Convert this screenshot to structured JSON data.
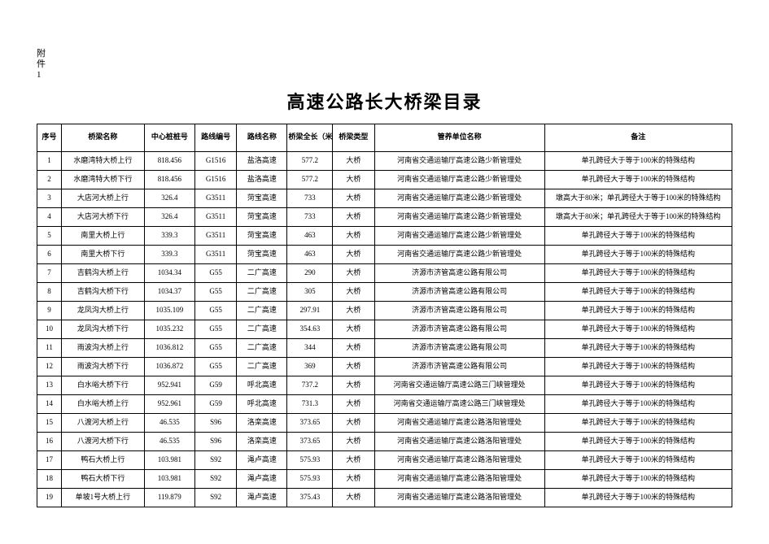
{
  "attachment_label": "附件1",
  "title": "高速公路长大桥梁目录",
  "table": {
    "columns": [
      {
        "key": "seq",
        "label": "序号",
        "class": "col-seq"
      },
      {
        "key": "name",
        "label": "桥梁名称",
        "class": "col-name"
      },
      {
        "key": "stake",
        "label": "中心桩桩号",
        "class": "col-stake"
      },
      {
        "key": "route_no",
        "label": "路线编号",
        "class": "col-route"
      },
      {
        "key": "route_name",
        "label": "路线名称",
        "class": "col-rname"
      },
      {
        "key": "length",
        "label": "桥梁全长（米）",
        "class": "col-len"
      },
      {
        "key": "type",
        "label": "桥梁类型",
        "class": "col-type"
      },
      {
        "key": "unit",
        "label": "管养单位名称",
        "class": "col-unit"
      },
      {
        "key": "note",
        "label": "备注",
        "class": "col-note"
      }
    ],
    "rows": [
      {
        "seq": "1",
        "name": "水磨湾特大桥上行",
        "stake": "818.456",
        "route_no": "G1516",
        "route_name": "盐洛高速",
        "length": "577.2",
        "type": "大桥",
        "unit": "河南省交通运输厅高速公路少新管理处",
        "note": "单孔跨径大于等于100米的特殊结构"
      },
      {
        "seq": "2",
        "name": "水磨湾特大桥下行",
        "stake": "818.456",
        "route_no": "G1516",
        "route_name": "盐洛高速",
        "length": "577.2",
        "type": "大桥",
        "unit": "河南省交通运输厅高速公路少新管理处",
        "note": "单孔跨径大于等于100米的特殊结构"
      },
      {
        "seq": "3",
        "name": "大店河大桥上行",
        "stake": "326.4",
        "route_no": "G3511",
        "route_name": "菏宝高速",
        "length": "733",
        "type": "大桥",
        "unit": "河南省交通运输厅高速公路少新管理处",
        "note": "墩高大于80米；单孔跨径大于等于100米的特殊结构"
      },
      {
        "seq": "4",
        "name": "大店河大桥下行",
        "stake": "326.4",
        "route_no": "G3511",
        "route_name": "菏宝高速",
        "length": "733",
        "type": "大桥",
        "unit": "河南省交通运输厅高速公路少新管理处",
        "note": "墩高大于80米；单孔跨径大于等于100米的特殊结构"
      },
      {
        "seq": "5",
        "name": "南里大桥上行",
        "stake": "339.3",
        "route_no": "G3511",
        "route_name": "菏宝高速",
        "length": "463",
        "type": "大桥",
        "unit": "河南省交通运输厅高速公路少新管理处",
        "note": "单孔跨径大于等于100米的特殊结构"
      },
      {
        "seq": "6",
        "name": "南里大桥下行",
        "stake": "339.3",
        "route_no": "G3511",
        "route_name": "菏宝高速",
        "length": "463",
        "type": "大桥",
        "unit": "河南省交通运输厅高速公路少新管理处",
        "note": "单孔跨径大于等于100米的特殊结构"
      },
      {
        "seq": "7",
        "name": "吉鹤沟大桥上行",
        "stake": "1034.34",
        "route_no": "G55",
        "route_name": "二广高速",
        "length": "290",
        "type": "大桥",
        "unit": "济源市济管高速公路有限公司",
        "note": "单孔跨径大于等于100米的特殊结构"
      },
      {
        "seq": "8",
        "name": "吉鹤沟大桥下行",
        "stake": "1034.37",
        "route_no": "G55",
        "route_name": "二广高速",
        "length": "305",
        "type": "大桥",
        "unit": "济源市济管高速公路有限公司",
        "note": "单孔跨径大于等于100米的特殊结构"
      },
      {
        "seq": "9",
        "name": "龙凤沟大桥上行",
        "stake": "1035.109",
        "route_no": "G55",
        "route_name": "二广高速",
        "length": "297.91",
        "type": "大桥",
        "unit": "济源市济管高速公路有限公司",
        "note": "单孔跨径大于等于100米的特殊结构"
      },
      {
        "seq": "10",
        "name": "龙凤沟大桥下行",
        "stake": "1035.232",
        "route_no": "G55",
        "route_name": "二广高速",
        "length": "354.63",
        "type": "大桥",
        "unit": "济源市济管高速公路有限公司",
        "note": "单孔跨径大于等于100米的特殊结构"
      },
      {
        "seq": "11",
        "name": "雨波沟大桥上行",
        "stake": "1036.812",
        "route_no": "G55",
        "route_name": "二广高速",
        "length": "344",
        "type": "大桥",
        "unit": "济源市济管高速公路有限公司",
        "note": "单孔跨径大于等于100米的特殊结构"
      },
      {
        "seq": "12",
        "name": "雨波沟大桥下行",
        "stake": "1036.872",
        "route_no": "G55",
        "route_name": "二广高速",
        "length": "369",
        "type": "大桥",
        "unit": "济源市济管高速公路有限公司",
        "note": "单孔跨径大于等于100米的特殊结构"
      },
      {
        "seq": "13",
        "name": "白水峪大桥下行",
        "stake": "952.941",
        "route_no": "G59",
        "route_name": "呼北高速",
        "length": "737.2",
        "type": "大桥",
        "unit": "河南省交通运输厅高速公路三门峡管理处",
        "note": "单孔跨径大于等于100米的特殊结构"
      },
      {
        "seq": "14",
        "name": "白水峪大桥上行",
        "stake": "952.961",
        "route_no": "G59",
        "route_name": "呼北高速",
        "length": "731.3",
        "type": "大桥",
        "unit": "河南省交通运输厅高速公路三门峡管理处",
        "note": "单孔跨径大于等于100米的特殊结构"
      },
      {
        "seq": "15",
        "name": "八渡河大桥上行",
        "stake": "46.535",
        "route_no": "S96",
        "route_name": "洛栾高速",
        "length": "373.65",
        "type": "大桥",
        "unit": "河南省交通运输厅高速公路洛阳管理处",
        "note": "单孔跨径大于等于100米的特殊结构"
      },
      {
        "seq": "16",
        "name": "八渡河大桥下行",
        "stake": "46.535",
        "route_no": "S96",
        "route_name": "洛栾高速",
        "length": "373.65",
        "type": "大桥",
        "unit": "河南省交通运输厅高速公路洛阳管理处",
        "note": "单孔跨径大于等于100米的特殊结构"
      },
      {
        "seq": "17",
        "name": "鸭石大桥上行",
        "stake": "103.981",
        "route_no": "S92",
        "route_name": "渑卢高速",
        "length": "575.93",
        "type": "大桥",
        "unit": "河南省交通运输厅高速公路洛阳管理处",
        "note": "单孔跨径大于等于100米的特殊结构"
      },
      {
        "seq": "18",
        "name": "鸭石大桥下行",
        "stake": "103.981",
        "route_no": "S92",
        "route_name": "渑卢高速",
        "length": "575.93",
        "type": "大桥",
        "unit": "河南省交通运输厅高速公路洛阳管理处",
        "note": "单孔跨径大于等于100米的特殊结构"
      },
      {
        "seq": "19",
        "name": "单坡1号大桥上行",
        "stake": "119.879",
        "route_no": "S92",
        "route_name": "渑卢高速",
        "length": "375.43",
        "type": "大桥",
        "unit": "河南省交通运输厅高速公路洛阳管理处",
        "note": "单孔跨径大于等于100米的特殊结构"
      }
    ]
  }
}
